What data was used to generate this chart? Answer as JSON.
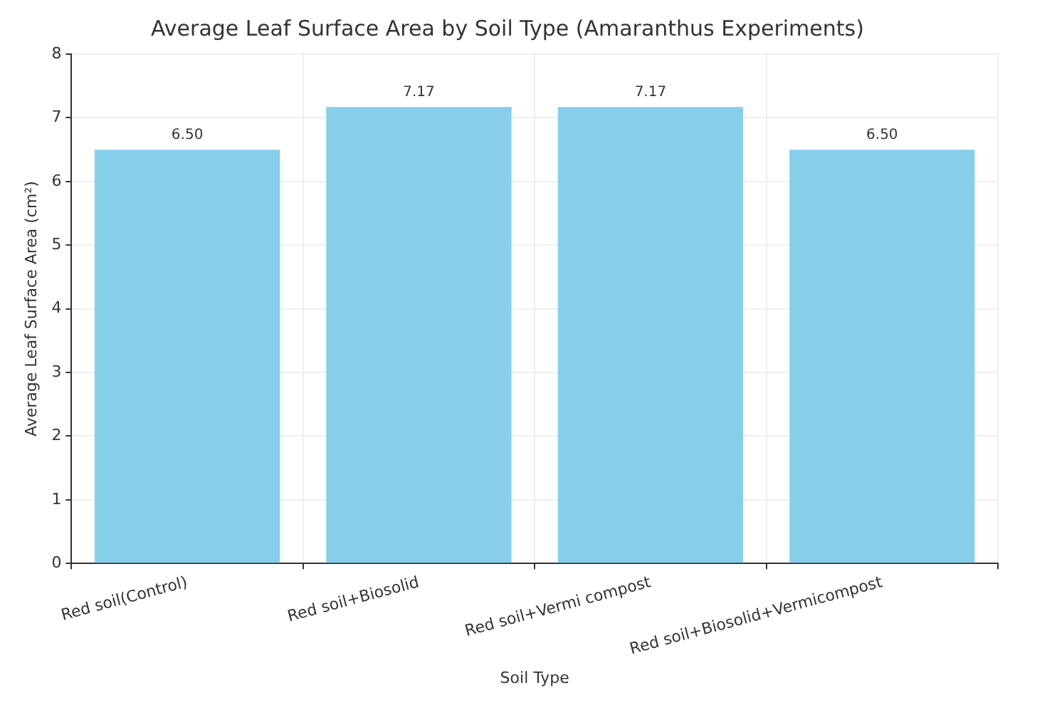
{
  "chart_data": {
    "type": "bar",
    "title": "Average Leaf Surface Area by Soil Type (Amaranthus Experiments)",
    "xlabel": "Soil Type",
    "ylabel": "Average Leaf Surface Area (cm²)",
    "categories": [
      "Red soil(Control)",
      "Red soil+Biosolid",
      "Red soil+Vermi compost",
      "Red soil+Biosolid+Vermicompost"
    ],
    "values": [
      6.5,
      7.17,
      7.17,
      6.5
    ],
    "value_labels": [
      "6.50",
      "7.17",
      "7.17",
      "6.50"
    ],
    "color": "#87ceeb",
    "ylim": [
      0,
      8
    ],
    "yticks": [
      0,
      1,
      2,
      3,
      4,
      5,
      6,
      7,
      8
    ],
    "grid": true
  }
}
